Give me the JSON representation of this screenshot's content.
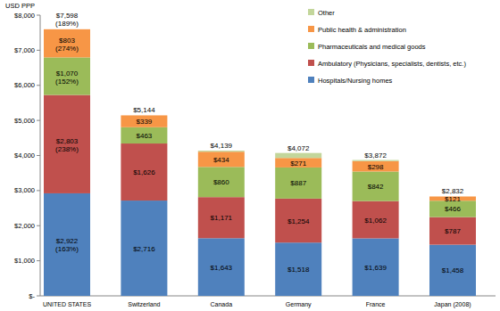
{
  "chart_data": {
    "type": "bar",
    "stacked": true,
    "data_labels": true,
    "grid": false,
    "legend": "top-right",
    "y_label": "USD PPP",
    "categories": [
      "UNITED STATES",
      "Switzerland",
      "Canada",
      "Germany",
      "France",
      "Japan (2008)"
    ],
    "ylim": [
      0,
      8000
    ],
    "yticks": [
      {
        "value": 0,
        "label": "$-"
      },
      {
        "value": 1000,
        "label": "$1,000"
      },
      {
        "value": 2000,
        "label": "$2,000"
      },
      {
        "value": 3000,
        "label": "$3,000"
      },
      {
        "value": 4000,
        "label": "$4,000"
      },
      {
        "value": 5000,
        "label": "$5,000"
      },
      {
        "value": 6000,
        "label": "$6,000"
      },
      {
        "value": 7000,
        "label": "$7,000"
      },
      {
        "value": 8000,
        "label": "$8,000"
      }
    ],
    "series": [
      {
        "name": "Hospitals/Nursing homes",
        "color": "#4f81bd",
        "values": [
          2922,
          2716,
          1643,
          1518,
          1639,
          1458
        ],
        "value_labels": [
          "$2,922",
          "$2,716",
          "$1,643",
          "$1,518",
          "$1,639",
          "$1,458"
        ],
        "percent_labels": [
          "(163%)",
          null,
          null,
          null,
          null,
          null
        ]
      },
      {
        "name": "Ambulatory (Physicians, specialists, dentists, etc.)",
        "color": "#c0504d",
        "values": [
          2803,
          1626,
          1171,
          1254,
          1062,
          787
        ],
        "value_labels": [
          "$2,803",
          "$1,626",
          "$1,171",
          "$1,254",
          "$1,062",
          "$787"
        ],
        "percent_labels": [
          "(238%)",
          null,
          null,
          null,
          null,
          null
        ]
      },
      {
        "name": "Pharmaceuticals and medical goods",
        "color": "#9bbb59",
        "values": [
          1070,
          463,
          860,
          887,
          842,
          466
        ],
        "value_labels": [
          "$1,070",
          "$463",
          "$860",
          "$887",
          "$842",
          "$466"
        ],
        "percent_labels": [
          "(152%)",
          null,
          null,
          null,
          null,
          null
        ]
      },
      {
        "name": "Public health & administration",
        "color": "#f79646",
        "values": [
          803,
          339,
          434,
          271,
          298,
          121
        ],
        "value_labels": [
          "$803",
          "$339",
          "$434",
          "$271",
          "$298",
          "$121"
        ],
        "percent_labels": [
          "(274%)",
          null,
          null,
          null,
          null,
          null
        ]
      },
      {
        "name": "Other",
        "color": "#c3d69b",
        "values": [
          0,
          0,
          31,
          142,
          31,
          0
        ]
      }
    ],
    "totals": [
      7598,
      5144,
      4139,
      4072,
      3872,
      2832
    ],
    "total_labels": [
      "$7,598",
      "$5,144",
      "$4,139",
      "$4,072",
      "$3,872",
      "$2,832"
    ],
    "total_percent_labels": [
      "(189%)",
      null,
      null,
      null,
      null,
      null
    ]
  }
}
